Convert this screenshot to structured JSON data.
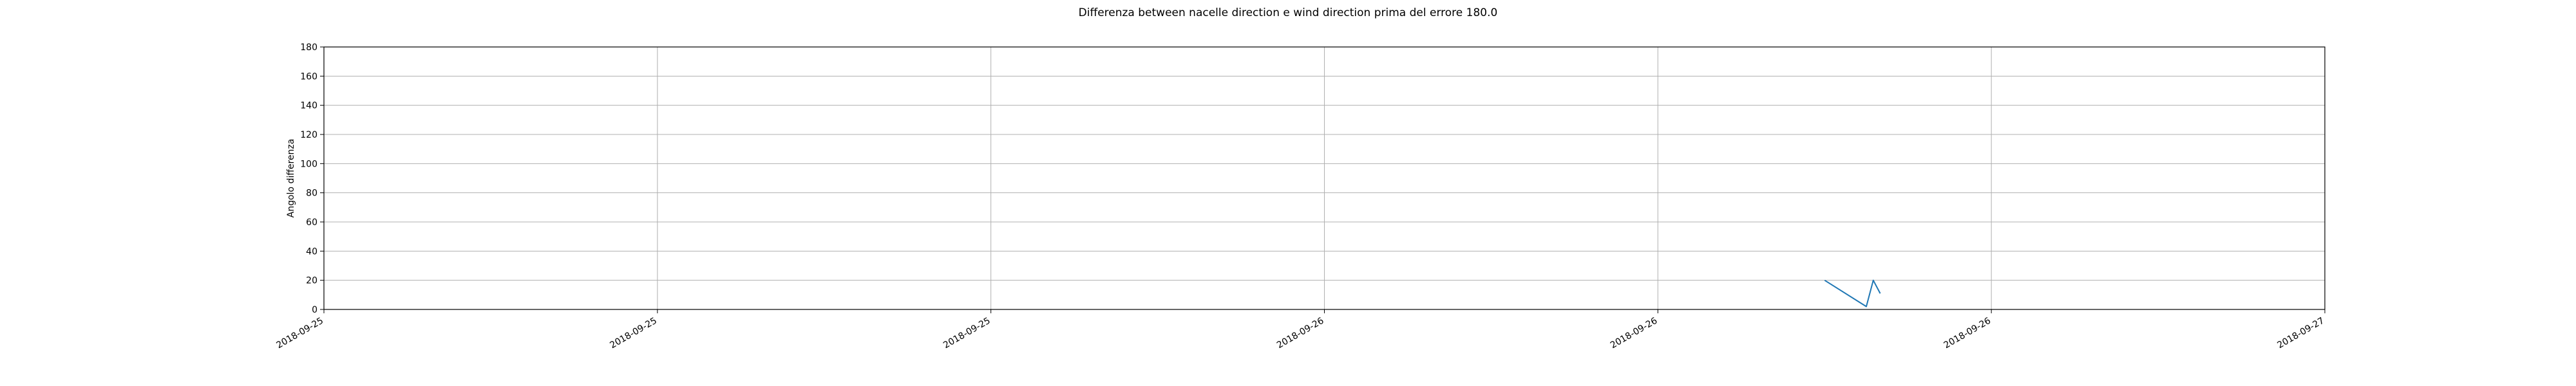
{
  "chart_data": {
    "type": "line",
    "title": "Differenza between nacelle direction e wind direction prima del errore 180.0",
    "xlabel": "",
    "ylabel": "Angolo differenza",
    "ylim": [
      0,
      180
    ],
    "yticks": [
      0,
      20,
      40,
      60,
      80,
      100,
      120,
      140,
      160,
      180
    ],
    "xlim": [
      "2018-09-25 00:00",
      "2018-09-27 00:00"
    ],
    "xtick_positions": [
      "2018-09-25 00:00",
      "2018-09-25 08:00",
      "2018-09-25 16:00",
      "2018-09-26 00:00",
      "2018-09-26 08:00",
      "2018-09-26 16:00",
      "2018-09-27 00:00"
    ],
    "xtick_labels": [
      "2018-09-25",
      "2018-09-25",
      "2018-09-25",
      "2018-09-26",
      "2018-09-26",
      "2018-09-26",
      "2018-09-27"
    ],
    "grid": true,
    "series": [
      {
        "color": "#1f77b4",
        "x": [
          "2018-09-26 12:00",
          "2018-09-26 13:00",
          "2018-09-26 13:10",
          "2018-09-26 13:20"
        ],
        "y": [
          20,
          2,
          20,
          11
        ]
      }
    ]
  }
}
